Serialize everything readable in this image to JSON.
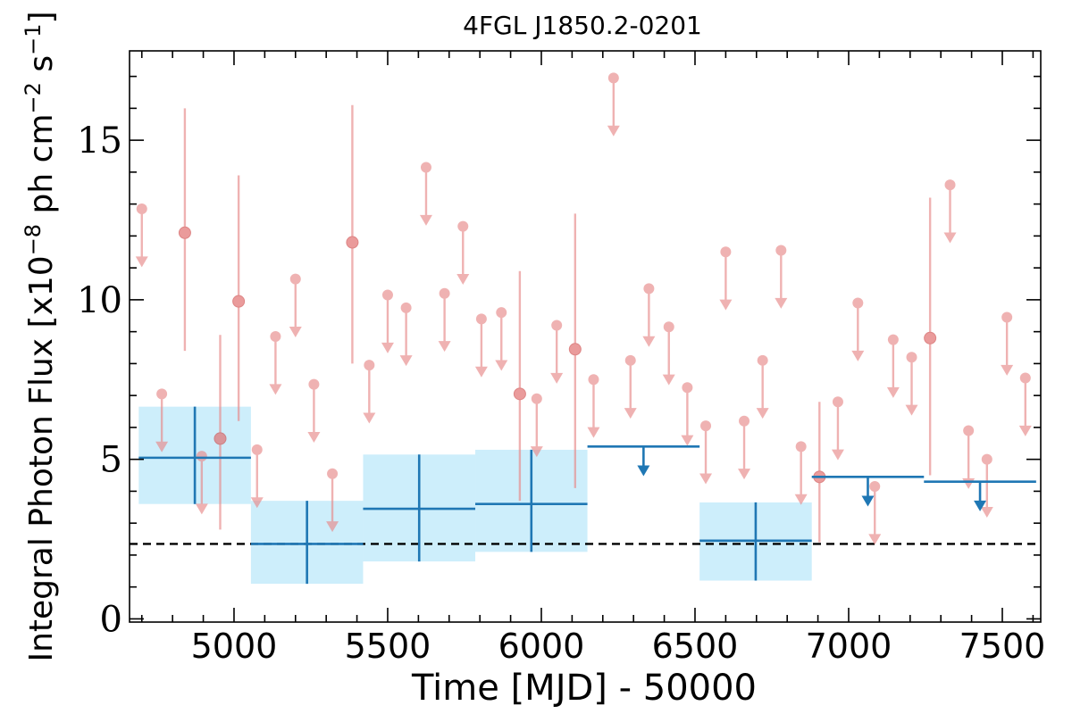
{
  "chart_data": {
    "type": "scatter",
    "title": "4FGL J1850.2-0201",
    "xlabel": "Time [MJD] - 50000",
    "ylabel_main": "Integral Photon Flux [x10",
    "ylabel_exp1": "−8",
    "ylabel_mid": " ph cm",
    "ylabel_exp2": "−2",
    "ylabel_s": " s",
    "ylabel_exp3": "−1",
    "ylabel_close": "]",
    "xlim": [
      4660,
      7625
    ],
    "ylim": [
      -0.1,
      17.8
    ],
    "xticks": [
      5000,
      5500,
      6000,
      6500,
      7000,
      7500
    ],
    "xtick_labels": [
      "5000",
      "5500",
      "6000",
      "6500",
      "7000",
      "7500"
    ],
    "yticks": [
      0,
      5,
      10,
      15
    ],
    "ytick_labels": [
      "0",
      "5",
      "10",
      "15"
    ],
    "x_minor_step": 100,
    "y_minor_step": 1,
    "reference_line": {
      "y": 2.35,
      "style": "dashed",
      "color": "#000000"
    },
    "colors": {
      "short_bin": "#e88a8a",
      "long_bin": "#1f77b4",
      "long_bin_band": "#cdeefb"
    },
    "short_bin_detections": [
      {
        "x": 4840,
        "y": 12.1,
        "ylo": 8.4,
        "yhi": 16.0
      },
      {
        "x": 4955,
        "y": 5.65,
        "ylo": 2.8,
        "yhi": 8.9
      },
      {
        "x": 5015,
        "y": 9.95,
        "ylo": 6.2,
        "yhi": 13.9
      },
      {
        "x": 5385,
        "y": 11.8,
        "ylo": 8.0,
        "yhi": 16.1
      },
      {
        "x": 5930,
        "y": 7.05,
        "ylo": 3.7,
        "yhi": 10.9
      },
      {
        "x": 6110,
        "y": 8.45,
        "ylo": 4.1,
        "yhi": 12.7
      },
      {
        "x": 6905,
        "y": 4.45,
        "ylo": 2.4,
        "yhi": 6.8
      },
      {
        "x": 7265,
        "y": 8.8,
        "ylo": 4.5,
        "yhi": 13.2
      }
    ],
    "short_bin_upper_limits": [
      {
        "x": 4700,
        "y": 12.85
      },
      {
        "x": 4765,
        "y": 7.05
      },
      {
        "x": 4895,
        "y": 5.1
      },
      {
        "x": 5075,
        "y": 5.3
      },
      {
        "x": 5135,
        "y": 8.85
      },
      {
        "x": 5200,
        "y": 10.65
      },
      {
        "x": 5260,
        "y": 7.35
      },
      {
        "x": 5320,
        "y": 4.55
      },
      {
        "x": 5440,
        "y": 7.95
      },
      {
        "x": 5500,
        "y": 10.15
      },
      {
        "x": 5560,
        "y": 9.75
      },
      {
        "x": 5625,
        "y": 14.15
      },
      {
        "x": 5685,
        "y": 10.2
      },
      {
        "x": 5745,
        "y": 12.3
      },
      {
        "x": 5805,
        "y": 9.4
      },
      {
        "x": 5870,
        "y": 9.6
      },
      {
        "x": 5985,
        "y": 6.9
      },
      {
        "x": 6050,
        "y": 9.2
      },
      {
        "x": 6170,
        "y": 7.5
      },
      {
        "x": 6235,
        "y": 16.95
      },
      {
        "x": 6290,
        "y": 8.1
      },
      {
        "x": 6350,
        "y": 10.35
      },
      {
        "x": 6415,
        "y": 9.15
      },
      {
        "x": 6475,
        "y": 7.25
      },
      {
        "x": 6535,
        "y": 6.05
      },
      {
        "x": 6600,
        "y": 11.5
      },
      {
        "x": 6660,
        "y": 6.2
      },
      {
        "x": 6720,
        "y": 8.1
      },
      {
        "x": 6780,
        "y": 11.55
      },
      {
        "x": 6845,
        "y": 5.4
      },
      {
        "x": 6965,
        "y": 6.8
      },
      {
        "x": 7030,
        "y": 9.9
      },
      {
        "x": 7085,
        "y": 4.15
      },
      {
        "x": 7145,
        "y": 8.75
      },
      {
        "x": 7205,
        "y": 8.2
      },
      {
        "x": 7330,
        "y": 13.6
      },
      {
        "x": 7390,
        "y": 5.9
      },
      {
        "x": 7450,
        "y": 5.0
      },
      {
        "x": 7515,
        "y": 9.45
      },
      {
        "x": 7575,
        "y": 7.55
      }
    ],
    "long_bin_detections": [
      {
        "x0": 4690,
        "x1": 5055,
        "y": 5.05,
        "ylo": 3.6,
        "yhi": 6.65
      },
      {
        "x0": 5055,
        "x1": 5420,
        "y": 2.35,
        "ylo": 1.1,
        "yhi": 3.7
      },
      {
        "x0": 5420,
        "x1": 5785,
        "y": 3.45,
        "ylo": 1.8,
        "yhi": 5.15
      },
      {
        "x0": 5785,
        "x1": 6150,
        "y": 3.6,
        "ylo": 2.1,
        "yhi": 5.3
      },
      {
        "x0": 6515,
        "x1": 6880,
        "y": 2.45,
        "ylo": 1.2,
        "yhi": 3.65
      }
    ],
    "long_bin_upper_limits": [
      {
        "x0": 6150,
        "x1": 6515,
        "y": 5.4
      },
      {
        "x0": 6880,
        "x1": 7245,
        "y": 4.45
      },
      {
        "x0": 7245,
        "x1": 7610,
        "y": 4.3
      }
    ]
  }
}
